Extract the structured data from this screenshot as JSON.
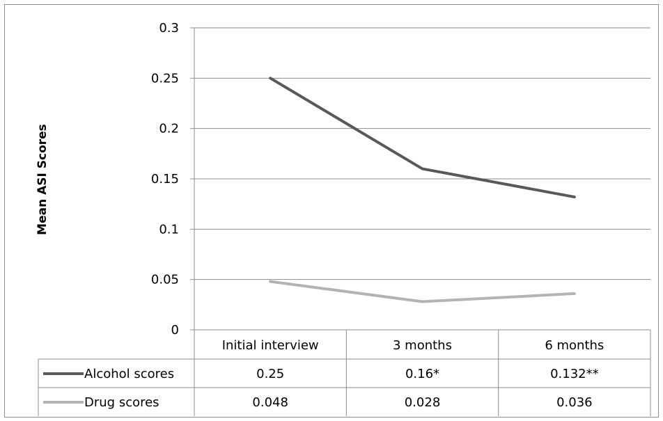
{
  "chart_data": {
    "type": "line",
    "ylabel": "Mean ASI Scores",
    "ylim": [
      0,
      0.3
    ],
    "yticks": [
      "0",
      "0.05",
      "0.1",
      "0.15",
      "0.2",
      "0.25",
      "0.3"
    ],
    "categories": [
      "Initial interview",
      "3 months",
      "6 months"
    ],
    "grid": true,
    "legend": "data-table",
    "series": [
      {
        "name": "Alcohol scores",
        "color": "#595959",
        "values": [
          0.25,
          0.16,
          0.132
        ],
        "labels": [
          "0.25",
          "0.16*",
          "0.132**"
        ]
      },
      {
        "name": "Drug scores",
        "color": "#b3b3b3",
        "values": [
          0.048,
          0.028,
          0.036
        ],
        "labels": [
          "0.048",
          "0.028",
          "0.036"
        ]
      }
    ]
  }
}
